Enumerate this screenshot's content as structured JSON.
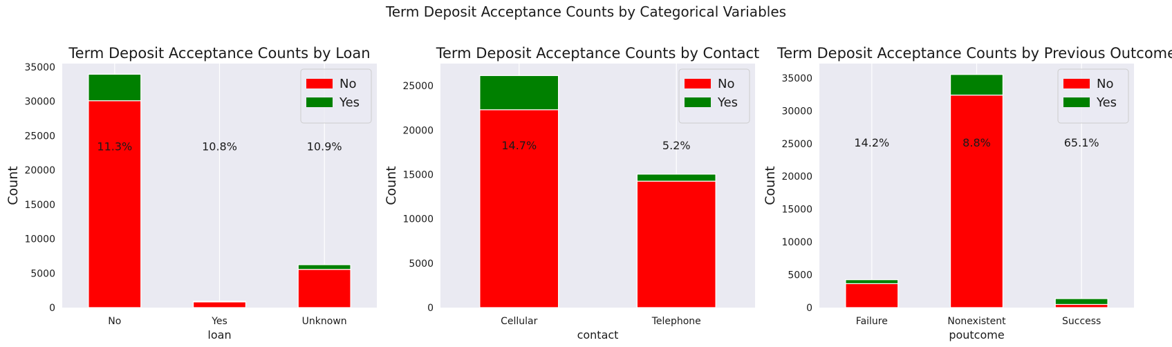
{
  "figure": {
    "suptitle": "Term Deposit Acceptance Counts by Categorical Variables"
  },
  "colors": {
    "no": "#ff0000",
    "yes": "#008000",
    "plot_bg": "#eaeaf2",
    "grid": "#ffffff"
  },
  "chart_data": [
    {
      "type": "bar",
      "stacked": true,
      "title": "Term Deposit Acceptance Counts by Loan",
      "xlabel": "loan",
      "ylabel": "Count",
      "categories": [
        "No",
        "Yes",
        "Unknown"
      ],
      "series": [
        {
          "name": "No",
          "color": "#ff0000",
          "values": [
            30100,
            830,
            5560
          ]
        },
        {
          "name": "Yes",
          "color": "#008000",
          "values": [
            3850,
            100,
            680
          ]
        }
      ],
      "annotations": [
        "11.3%",
        "10.8%",
        "10.9%"
      ],
      "annotation_y": 23500,
      "ylim": [
        0,
        35500
      ],
      "yticks": [
        0,
        5000,
        10000,
        15000,
        20000,
        25000,
        30000,
        35000
      ],
      "legend": "top-right",
      "grid": "vertical"
    },
    {
      "type": "bar",
      "stacked": true,
      "title": "Term Deposit Acceptance Counts by Contact",
      "xlabel": "contact",
      "ylabel": "Count",
      "categories": [
        "Cellular",
        "Telephone"
      ],
      "series": [
        {
          "name": "No",
          "color": "#ff0000",
          "values": [
            22300,
            14250
          ]
        },
        {
          "name": "Yes",
          "color": "#008000",
          "values": [
            3850,
            790
          ]
        }
      ],
      "annotations": [
        "14.7%",
        "5.2%"
      ],
      "annotation_y": 18300,
      "ylim": [
        0,
        27500
      ],
      "yticks": [
        0,
        5000,
        10000,
        15000,
        20000,
        25000
      ],
      "legend": "top-right",
      "grid": "vertical"
    },
    {
      "type": "bar",
      "stacked": true,
      "title": "Term Deposit Acceptance Counts by Previous Outcome",
      "xlabel": "poutcome",
      "ylabel": "Count",
      "categories": [
        "Failure",
        "Nonexistent",
        "Success"
      ],
      "series": [
        {
          "name": "No",
          "color": "#ff0000",
          "values": [
            3650,
            32400,
            480
          ]
        },
        {
          "name": "Yes",
          "color": "#008000",
          "values": [
            600,
            3140,
            890
          ]
        }
      ],
      "annotations": [
        "14.2%",
        "8.8%",
        "65.1%"
      ],
      "annotation_y": 25200,
      "ylim": [
        0,
        37200
      ],
      "yticks": [
        0,
        5000,
        10000,
        15000,
        20000,
        25000,
        30000,
        35000
      ],
      "legend": "top-right",
      "grid": "vertical"
    }
  ]
}
